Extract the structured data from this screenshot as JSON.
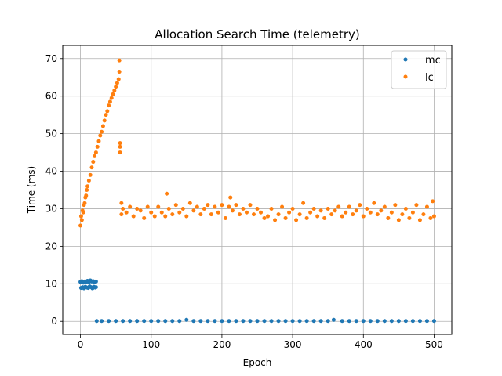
{
  "chart_data": {
    "type": "scatter",
    "title": "Allocation Search Time (telemetry)",
    "xlabel": "Epoch",
    "ylabel": "Time (ms)",
    "xlim": [
      -25,
      525
    ],
    "ylim": [
      -3.5,
      73.5
    ],
    "xticks": [
      0,
      100,
      200,
      300,
      400,
      500
    ],
    "yticks": [
      0,
      10,
      20,
      30,
      40,
      50,
      60,
      70
    ],
    "grid": true,
    "legend_position": "top-right",
    "series": [
      {
        "name": "mc",
        "color": "#1f77b4",
        "points": [
          [
            0,
            10.5
          ],
          [
            1,
            8.9
          ],
          [
            2,
            10.7
          ],
          [
            3,
            9.1
          ],
          [
            4,
            10.3
          ],
          [
            5,
            8.8
          ],
          [
            6,
            10.6
          ],
          [
            7,
            9.2
          ],
          [
            8,
            10.4
          ],
          [
            9,
            9.0
          ],
          [
            10,
            10.8
          ],
          [
            11,
            8.9
          ],
          [
            12,
            10.5
          ],
          [
            13,
            9.3
          ],
          [
            14,
            10.9
          ],
          [
            15,
            9.1
          ],
          [
            16,
            10.6
          ],
          [
            17,
            8.8
          ],
          [
            18,
            10.7
          ],
          [
            19,
            9.2
          ],
          [
            20,
            10.4
          ],
          [
            21,
            9.0
          ],
          [
            22,
            10.6
          ],
          [
            22,
            9.1
          ],
          [
            23,
            0.1
          ],
          [
            30,
            0.1
          ],
          [
            40,
            0.1
          ],
          [
            50,
            0.1
          ],
          [
            60,
            0.1
          ],
          [
            70,
            0.1
          ],
          [
            80,
            0.1
          ],
          [
            90,
            0.1
          ],
          [
            100,
            0.1
          ],
          [
            110,
            0.1
          ],
          [
            120,
            0.1
          ],
          [
            130,
            0.1
          ],
          [
            140,
            0.1
          ],
          [
            150,
            0.4
          ],
          [
            160,
            0.1
          ],
          [
            170,
            0.1
          ],
          [
            180,
            0.1
          ],
          [
            190,
            0.1
          ],
          [
            200,
            0.1
          ],
          [
            210,
            0.1
          ],
          [
            220,
            0.1
          ],
          [
            230,
            0.1
          ],
          [
            240,
            0.1
          ],
          [
            250,
            0.1
          ],
          [
            260,
            0.1
          ],
          [
            270,
            0.1
          ],
          [
            280,
            0.1
          ],
          [
            290,
            0.1
          ],
          [
            300,
            0.1
          ],
          [
            310,
            0.1
          ],
          [
            320,
            0.1
          ],
          [
            330,
            0.1
          ],
          [
            340,
            0.1
          ],
          [
            350,
            0.1
          ],
          [
            358,
            0.4
          ],
          [
            370,
            0.1
          ],
          [
            380,
            0.1
          ],
          [
            390,
            0.1
          ],
          [
            400,
            0.1
          ],
          [
            410,
            0.1
          ],
          [
            420,
            0.1
          ],
          [
            430,
            0.1
          ],
          [
            440,
            0.1
          ],
          [
            450,
            0.1
          ],
          [
            460,
            0.1
          ],
          [
            470,
            0.1
          ],
          [
            480,
            0.1
          ],
          [
            490,
            0.1
          ],
          [
            500,
            0.1
          ]
        ]
      },
      {
        "name": "lc",
        "color": "#ff7f0e",
        "points": [
          [
            0,
            25.5
          ],
          [
            1,
            28.0
          ],
          [
            2,
            27.0
          ],
          [
            3,
            29.5
          ],
          [
            4,
            29.0
          ],
          [
            5,
            31.0
          ],
          [
            6,
            31.5
          ],
          [
            7,
            33.0
          ],
          [
            8,
            33.5
          ],
          [
            9,
            35.0
          ],
          [
            10,
            36.0
          ],
          [
            12,
            37.5
          ],
          [
            14,
            39.0
          ],
          [
            16,
            41.0
          ],
          [
            18,
            42.5
          ],
          [
            20,
            44.0
          ],
          [
            22,
            45.0
          ],
          [
            24,
            46.5
          ],
          [
            26,
            48.0
          ],
          [
            28,
            49.5
          ],
          [
            30,
            50.5
          ],
          [
            32,
            52.0
          ],
          [
            34,
            53.5
          ],
          [
            36,
            55.0
          ],
          [
            38,
            56.0
          ],
          [
            40,
            57.5
          ],
          [
            42,
            58.5
          ],
          [
            44,
            59.5
          ],
          [
            46,
            60.5
          ],
          [
            48,
            61.5
          ],
          [
            50,
            62.5
          ],
          [
            52,
            63.5
          ],
          [
            54,
            64.5
          ],
          [
            55,
            69.5
          ],
          [
            55,
            66.5
          ],
          [
            56,
            47.5
          ],
          [
            56,
            46.5
          ],
          [
            56,
            45.0
          ],
          [
            58,
            31.5
          ],
          [
            58,
            28.5
          ],
          [
            60,
            30.0
          ],
          [
            65,
            29.0
          ],
          [
            70,
            30.5
          ],
          [
            75,
            28.0
          ],
          [
            80,
            30.0
          ],
          [
            85,
            29.5
          ],
          [
            90,
            27.5
          ],
          [
            95,
            30.5
          ],
          [
            100,
            29.0
          ],
          [
            105,
            28.0
          ],
          [
            110,
            30.5
          ],
          [
            115,
            29.0
          ],
          [
            120,
            28.0
          ],
          [
            122,
            34.0
          ],
          [
            125,
            30.0
          ],
          [
            130,
            28.5
          ],
          [
            135,
            31.0
          ],
          [
            140,
            29.0
          ],
          [
            145,
            30.0
          ],
          [
            150,
            28.0
          ],
          [
            155,
            31.5
          ],
          [
            160,
            29.5
          ],
          [
            165,
            30.5
          ],
          [
            170,
            28.5
          ],
          [
            175,
            30.0
          ],
          [
            180,
            31.0
          ],
          [
            185,
            28.5
          ],
          [
            190,
            30.5
          ],
          [
            195,
            29.0
          ],
          [
            200,
            31.0
          ],
          [
            205,
            27.5
          ],
          [
            210,
            30.5
          ],
          [
            212,
            33.0
          ],
          [
            215,
            29.5
          ],
          [
            220,
            31.0
          ],
          [
            225,
            28.5
          ],
          [
            230,
            30.0
          ],
          [
            235,
            29.0
          ],
          [
            240,
            31.0
          ],
          [
            245,
            28.5
          ],
          [
            250,
            30.0
          ],
          [
            255,
            29.0
          ],
          [
            260,
            27.5
          ],
          [
            265,
            28.0
          ],
          [
            270,
            30.0
          ],
          [
            275,
            27.0
          ],
          [
            280,
            28.5
          ],
          [
            285,
            30.5
          ],
          [
            290,
            27.5
          ],
          [
            295,
            29.0
          ],
          [
            300,
            30.0
          ],
          [
            305,
            27.0
          ],
          [
            310,
            28.5
          ],
          [
            315,
            31.5
          ],
          [
            320,
            27.5
          ],
          [
            325,
            29.0
          ],
          [
            330,
            30.0
          ],
          [
            335,
            28.0
          ],
          [
            340,
            29.5
          ],
          [
            345,
            27.5
          ],
          [
            350,
            30.0
          ],
          [
            355,
            28.5
          ],
          [
            360,
            29.5
          ],
          [
            365,
            30.5
          ],
          [
            370,
            28.0
          ],
          [
            375,
            29.0
          ],
          [
            380,
            30.5
          ],
          [
            385,
            28.5
          ],
          [
            390,
            29.5
          ],
          [
            395,
            31.0
          ],
          [
            400,
            28.0
          ],
          [
            405,
            30.0
          ],
          [
            410,
            29.0
          ],
          [
            415,
            31.5
          ],
          [
            420,
            28.5
          ],
          [
            425,
            29.5
          ],
          [
            430,
            30.5
          ],
          [
            435,
            27.5
          ],
          [
            440,
            29.0
          ],
          [
            445,
            31.0
          ],
          [
            450,
            27.0
          ],
          [
            455,
            28.5
          ],
          [
            460,
            30.0
          ],
          [
            465,
            27.5
          ],
          [
            470,
            29.0
          ],
          [
            475,
            31.0
          ],
          [
            480,
            27.0
          ],
          [
            485,
            28.5
          ],
          [
            490,
            30.5
          ],
          [
            495,
            27.5
          ],
          [
            498,
            32.0
          ],
          [
            500,
            28.0
          ]
        ]
      }
    ]
  }
}
